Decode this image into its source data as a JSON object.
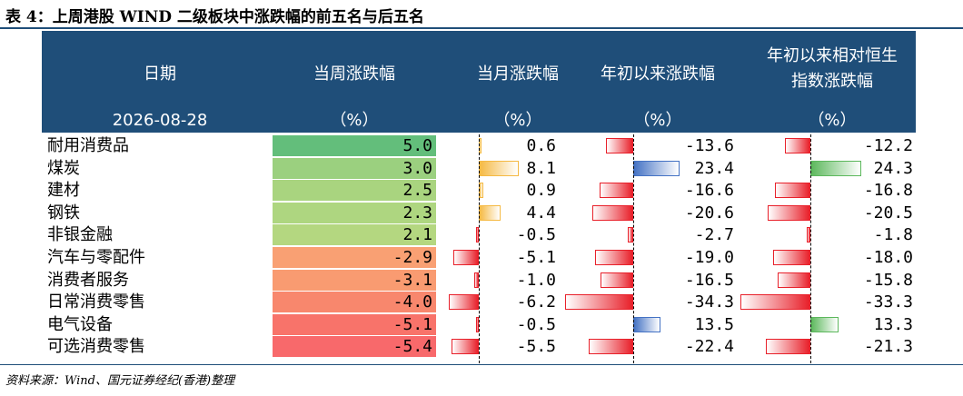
{
  "title": "表 4：上周港股 WIND 二级板块中涨跌幅的前五名与后五名",
  "header": {
    "col0": "日期",
    "col0_sub": "2026-08-28",
    "col1": "当周涨跌幅",
    "col2": "当月涨跌幅",
    "col3": "年初以来涨跌幅",
    "col4_line1": "年初以来相对恒生",
    "col4_line2": "指数涨跌幅",
    "unit": "（%）"
  },
  "colors": {
    "header_bg": "#1f4e79",
    "pos_month": "#f5b942",
    "neg_bar": "#e8202a",
    "pos_ytd": "#4472c4",
    "pos_rel": "#5cb85c"
  },
  "rows": [
    {
      "name": "耐用消费品",
      "week": "5.0",
      "week_color": "#63be7b",
      "month": "0.6",
      "ytd": "-13.6",
      "rel": "-12.2"
    },
    {
      "name": "煤炭",
      "week": "3.0",
      "week_color": "#9bd07f",
      "month": "8.1",
      "ytd": "23.4",
      "rel": "24.3"
    },
    {
      "name": "建材",
      "week": "2.5",
      "week_color": "#a9d47f",
      "month": "0.9",
      "ytd": "-16.6",
      "rel": "-16.8"
    },
    {
      "name": "钢铁",
      "week": "2.3",
      "week_color": "#aed680",
      "month": "4.4",
      "ytd": "-20.6",
      "rel": "-20.5"
    },
    {
      "name": "非银金融",
      "week": "2.1",
      "week_color": "#b4d780",
      "month": "-0.5",
      "ytd": "-2.7",
      "rel": "-1.8"
    },
    {
      "name": "汽车与零配件",
      "week": "-2.9",
      "week_color": "#f9a073",
      "month": "-5.1",
      "ytd": "-19.0",
      "rel": "-18.0"
    },
    {
      "name": "消费者服务",
      "week": "-3.1",
      "week_color": "#f99b71",
      "month": "-1.0",
      "ytd": "-16.5",
      "rel": "-15.8"
    },
    {
      "name": "日常消费零售",
      "week": "-4.0",
      "week_color": "#f8876d",
      "month": "-6.2",
      "ytd": "-34.3",
      "rel": "-33.3"
    },
    {
      "name": "电气设备",
      "week": "-5.1",
      "week_color": "#f8736a",
      "month": "-0.5",
      "ytd": "13.5",
      "rel": "13.3"
    },
    {
      "name": "可选消费零售",
      "week": "-5.4",
      "week_color": "#f8696b",
      "month": "-5.5",
      "ytd": "-22.4",
      "rel": "-21.3"
    }
  ],
  "source": "资料来源：Wind、国元证券经纪(香港)整理"
}
